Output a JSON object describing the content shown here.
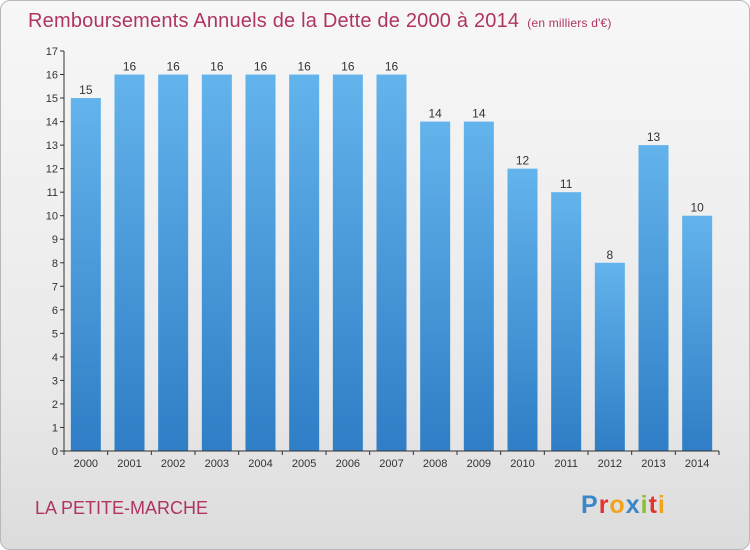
{
  "title": "Remboursements Annuels de la Dette de 2000 à 2014",
  "subtitle": "(en milliers d'€)",
  "place": "LA PETITE-MARCHE",
  "logo": {
    "text": "Proxiti",
    "colors": [
      "#3a87c8",
      "#e2342f",
      "#f2a21b",
      "#3a87c8",
      "#8bbf2f",
      "#e2342f",
      "#f2a21b"
    ]
  },
  "colors": {
    "title": "#b03463",
    "bar_top": "#63b3ec",
    "bar_bottom": "#2f7ec6",
    "axis": "#333333"
  },
  "chart_data": {
    "type": "bar",
    "title": "Remboursements Annuels de la Dette de 2000 à 2014",
    "categories": [
      "2000",
      "2001",
      "2002",
      "2003",
      "2004",
      "2005",
      "2006",
      "2007",
      "2008",
      "2009",
      "2010",
      "2011",
      "2012",
      "2013",
      "2014"
    ],
    "values": [
      15,
      16,
      16,
      16,
      16,
      16,
      16,
      16,
      14,
      14,
      12,
      11,
      8,
      13,
      10
    ],
    "yticks": [
      0,
      1,
      2,
      3,
      4,
      5,
      6,
      7,
      8,
      9,
      10,
      11,
      12,
      13,
      14,
      15,
      16,
      17
    ],
    "ylim": [
      0,
      17
    ],
    "xlabel": "",
    "ylabel": "",
    "grid": false,
    "data_labels": true
  }
}
